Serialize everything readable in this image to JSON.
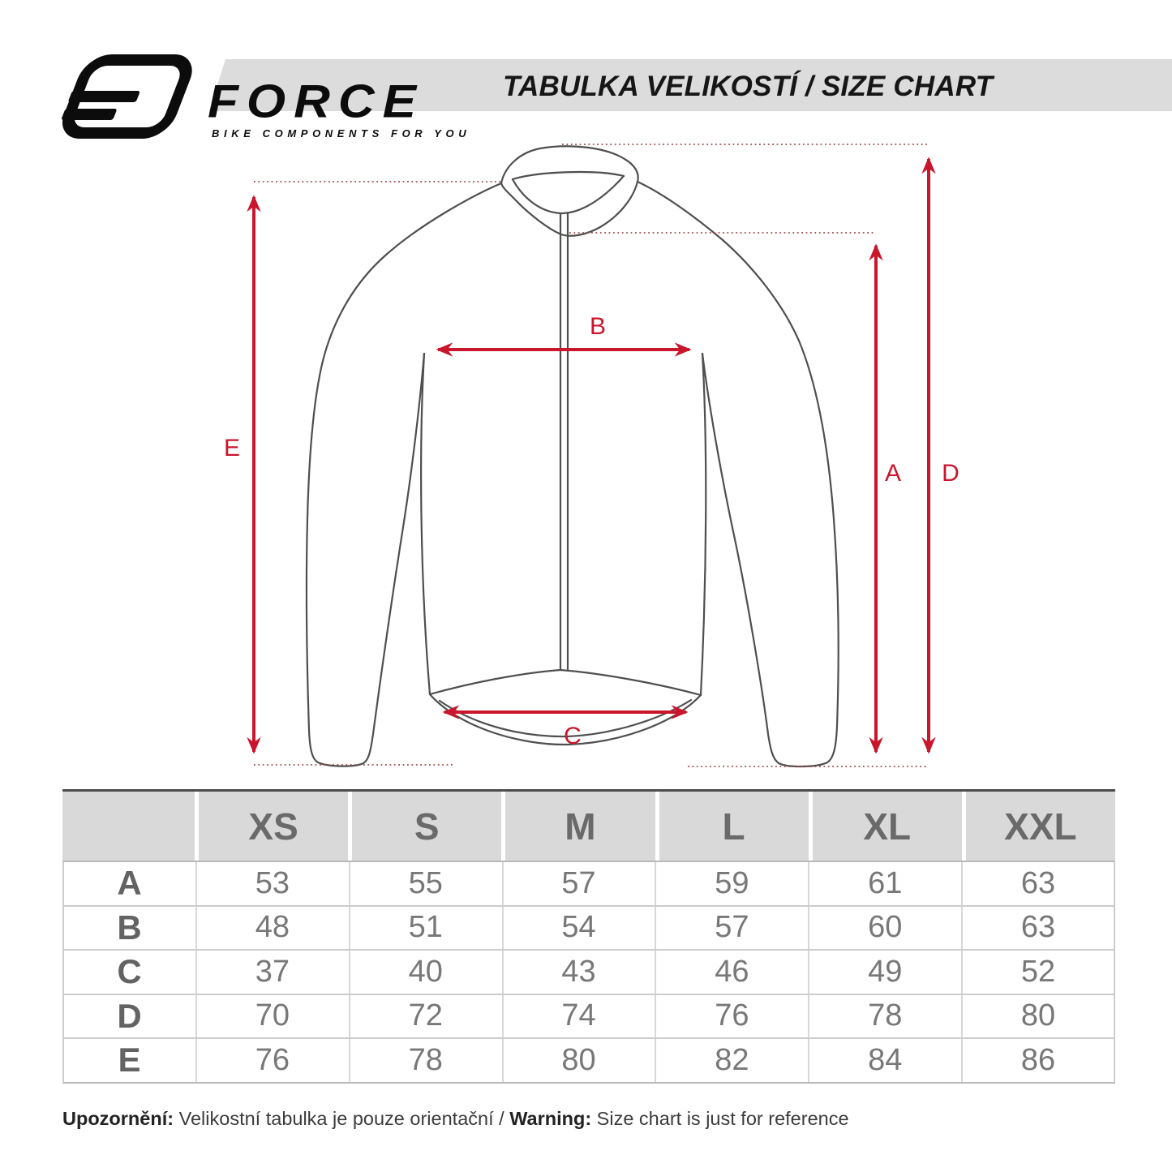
{
  "logo": {
    "brand": "FORCE",
    "tagline": "BIKE COMPONENTS FOR YOU"
  },
  "header": {
    "title": "TABULKA VELIKOSTÍ / SIZE CHART"
  },
  "colors": {
    "accent_red": "#c9162c",
    "dotted_red": "#9c4a4e",
    "outline_gray": "#4f4f4f",
    "band_gray": "#dcdcdc",
    "table_header_gray": "#d9d9d9"
  },
  "diagram": {
    "labels": {
      "a": "A",
      "b": "B",
      "c": "C",
      "d": "D",
      "e": "E"
    }
  },
  "size_table": {
    "columns": [
      "XS",
      "S",
      "M",
      "L",
      "XL",
      "XXL"
    ],
    "rows": [
      {
        "label": "A",
        "values": [
          "53",
          "55",
          "57",
          "59",
          "61",
          "63"
        ]
      },
      {
        "label": "B",
        "values": [
          "48",
          "51",
          "54",
          "57",
          "60",
          "63"
        ]
      },
      {
        "label": "C",
        "values": [
          "37",
          "40",
          "43",
          "46",
          "49",
          "52"
        ]
      },
      {
        "label": "D",
        "values": [
          "70",
          "72",
          "74",
          "76",
          "78",
          "80"
        ]
      },
      {
        "label": "E",
        "values": [
          "76",
          "78",
          "80",
          "82",
          "84",
          "86"
        ]
      }
    ]
  },
  "footer": {
    "parts": [
      {
        "text": "Upozornění:",
        "bold": true
      },
      {
        "text": " Velikostní tabulka je pouze orientační / ",
        "bold": false
      },
      {
        "text": "Warning:",
        "bold": true
      },
      {
        "text": " Size chart is just for reference",
        "bold": false
      }
    ]
  }
}
